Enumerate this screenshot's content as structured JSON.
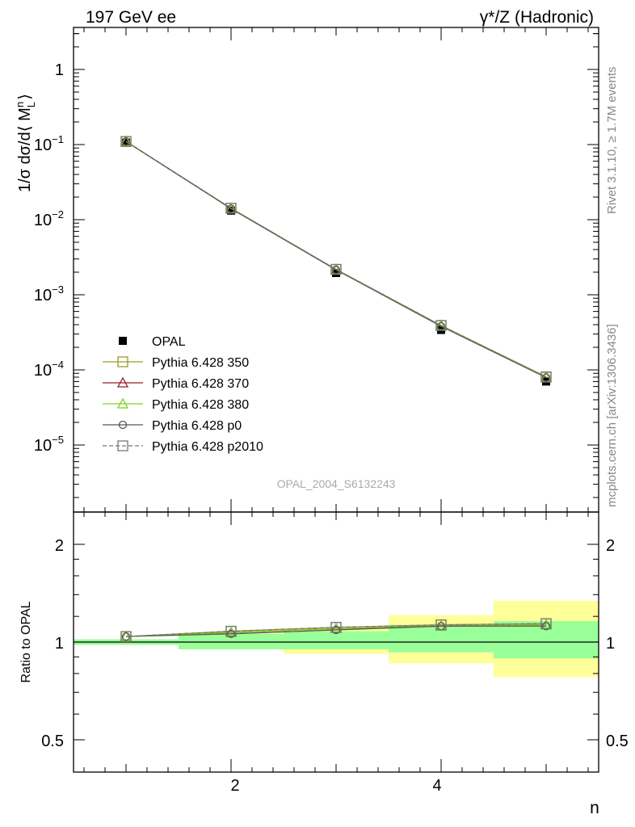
{
  "header": {
    "left": "197 GeV ee",
    "right": "γ*/Z (Hadronic)"
  },
  "side_labels": {
    "rivet": "Rivet 3.1.10, ≥ 1.7M events",
    "mcplots": "mcplots.cern.ch [arXiv:1306.3436]"
  },
  "watermark": "OPAL_2004_S6132243",
  "top_panel": {
    "ylabel": "1/σ dσ/d⟨ M_L^n ⟩",
    "ytick_labels": [
      "1",
      "10^-1",
      "10^-2",
      "10^-3",
      "10^-4",
      "10^-5"
    ]
  },
  "bottom_panel": {
    "ylabel": "Ratio to OPAL",
    "ytick_labels": [
      "2",
      "1",
      "0.5"
    ],
    "right_ytick_labels": [
      "2",
      "1",
      "0.5"
    ]
  },
  "xlabel": "n",
  "xtick_labels": [
    "2",
    "4"
  ],
  "legend": [
    {
      "label": "OPAL",
      "marker": "filled-square",
      "color": "#000000",
      "line": "none"
    },
    {
      "label": "Pythia 6.428 350",
      "marker": "open-square",
      "color": "#9a9a28",
      "line": "solid"
    },
    {
      "label": "Pythia 6.428 370",
      "marker": "open-triangle",
      "color": "#9b1c24",
      "line": "solid"
    },
    {
      "label": "Pythia 6.428 380",
      "marker": "open-triangle",
      "color": "#7ed321",
      "line": "solid"
    },
    {
      "label": "Pythia 6.428 p0",
      "marker": "open-circle",
      "color": "#555555",
      "line": "solid"
    },
    {
      "label": "Pythia 6.428 p2010",
      "marker": "open-square",
      "color": "#777777",
      "line": "dashed"
    }
  ],
  "colors": {
    "band_inner": "#99ff99",
    "band_outer": "#ffff99"
  },
  "chart_data": [
    {
      "type": "scatter",
      "panel": "main",
      "yscale": "log",
      "xlim": [
        0.5,
        5.5
      ],
      "ylim": [
        1e-06,
        3.5
      ],
      "x": [
        1,
        2,
        3,
        4,
        5
      ],
      "series": [
        {
          "name": "OPAL",
          "values": [
            0.106,
            0.0132,
            0.00195,
            0.00034,
            7e-05
          ]
        },
        {
          "name": "Pythia 6.428 350",
          "values": [
            0.11,
            0.0142,
            0.00218,
            0.00039,
            8.1e-05
          ]
        },
        {
          "name": "Pythia 6.428 370",
          "values": [
            0.11,
            0.0141,
            0.00216,
            0.00039,
            8e-05
          ]
        },
        {
          "name": "Pythia 6.428 380",
          "values": [
            0.11,
            0.0141,
            0.00216,
            0.00039,
            8e-05
          ]
        },
        {
          "name": "Pythia 6.428 p0",
          "values": [
            0.11,
            0.014,
            0.00215,
            0.00038,
            7.9e-05
          ]
        },
        {
          "name": "Pythia 6.428 p2010",
          "values": [
            0.11,
            0.0142,
            0.00218,
            0.00039,
            8e-05
          ]
        }
      ]
    },
    {
      "type": "line",
      "panel": "ratio",
      "yscale": "log",
      "xlim": [
        0.5,
        5.5
      ],
      "ylim": [
        0.4,
        2.5
      ],
      "x": [
        1,
        2,
        3,
        4,
        5
      ],
      "bins": [
        [
          0.5,
          1.5
        ],
        [
          1.5,
          2.5
        ],
        [
          2.5,
          3.5
        ],
        [
          3.5,
          4.5
        ],
        [
          4.5,
          5.5
        ]
      ],
      "band_inner": [
        [
          0.98,
          1.02
        ],
        [
          0.95,
          1.06
        ],
        [
          0.95,
          1.08
        ],
        [
          0.93,
          1.13
        ],
        [
          0.89,
          1.16
        ]
      ],
      "band_outer": [
        [
          0.98,
          1.02
        ],
        [
          0.95,
          1.07
        ],
        [
          0.92,
          1.1
        ],
        [
          0.86,
          1.21
        ],
        [
          0.78,
          1.34
        ]
      ],
      "series": [
        {
          "name": "Pythia 6.428 350",
          "values": [
            1.04,
            1.08,
            1.11,
            1.13,
            1.14
          ]
        },
        {
          "name": "Pythia 6.428 370",
          "values": [
            1.04,
            1.07,
            1.1,
            1.12,
            1.13
          ]
        },
        {
          "name": "Pythia 6.428 380",
          "values": [
            1.04,
            1.07,
            1.1,
            1.12,
            1.13
          ]
        },
        {
          "name": "Pythia 6.428 p0",
          "values": [
            1.04,
            1.06,
            1.09,
            1.12,
            1.12
          ]
        },
        {
          "name": "Pythia 6.428 p2010",
          "values": [
            1.04,
            1.08,
            1.11,
            1.13,
            1.14
          ]
        }
      ]
    }
  ]
}
